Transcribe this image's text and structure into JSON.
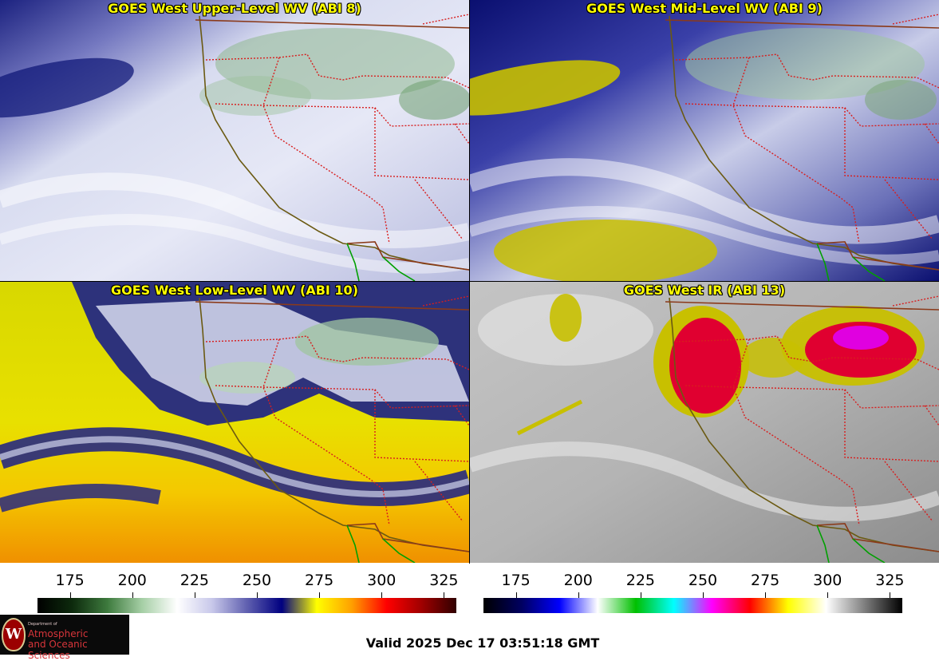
{
  "panels": [
    {
      "title": "GOES West Upper-Level WV (ABI 8)",
      "product": "upper-level-water-vapor"
    },
    {
      "title": "GOES West Mid-Level WV (ABI 9)",
      "product": "mid-level-water-vapor"
    },
    {
      "title": "GOES West Low-Level WV (ABI 10)",
      "product": "low-level-water-vapor"
    },
    {
      "title": "GOES West IR (ABI 13)",
      "product": "infrared"
    }
  ],
  "colorbars": {
    "water_vapor": {
      "ticks": [
        "175",
        "200",
        "225",
        "250",
        "275",
        "300",
        "325"
      ],
      "range": [
        162,
        330
      ],
      "stops": [
        "#000000",
        "#0d2a0d",
        "#3d7a3d",
        "#a6cfa6",
        "#ffffff",
        "#c8c8ea",
        "#6060b0",
        "#000080",
        "#ffff00",
        "#ffa000",
        "#ff0000",
        "#a00000",
        "#300000"
      ]
    },
    "infrared": {
      "ticks": [
        "175",
        "200",
        "225",
        "250",
        "275",
        "300",
        "325"
      ],
      "range": [
        162,
        330
      ],
      "stops": [
        "#000000",
        "#000060",
        "#0000ff",
        "#ffffff",
        "#00c000",
        "#00ffff",
        "#ff00ff",
        "#ff0000",
        "#ffff00",
        "#ffffff",
        "#808080",
        "#000000"
      ]
    }
  },
  "map_colors": {
    "state_borders": "#d81e1e",
    "coastline": "#6b5a12",
    "international_border": "#8b3a1a",
    "mexico_coast": "#00a000"
  },
  "footer": {
    "valid_time": "Valid 2025 Dec 17 03:51:18 GMT",
    "logo_department": "Department of",
    "logo_line1": "Atmospheric",
    "logo_line2": "and Oceanic Sciences",
    "logo_seal": "W"
  }
}
